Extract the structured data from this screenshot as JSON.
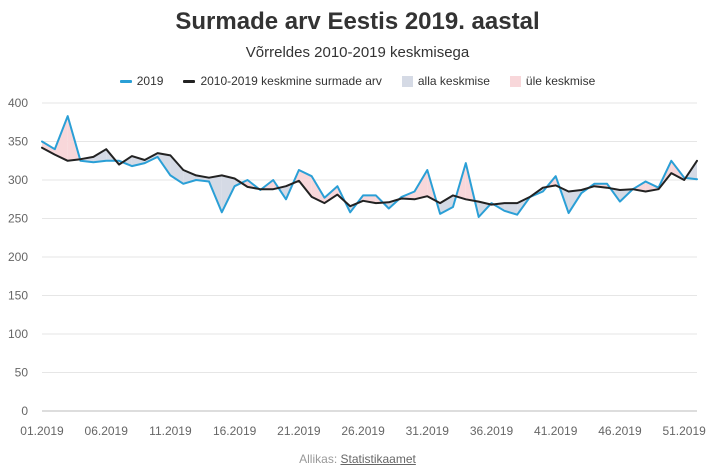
{
  "chart_data": {
    "type": "line",
    "title": "Surmade arv Eestis 2019. aastal",
    "subtitle": "Võrreldes 2010-2019 keskmisega",
    "xlabel": "",
    "ylabel": "",
    "x": [
      "01.2019",
      "02.2019",
      "03.2019",
      "04.2019",
      "05.2019",
      "06.2019",
      "07.2019",
      "08.2019",
      "09.2019",
      "10.2019",
      "11.2019",
      "12.2019",
      "13.2019",
      "14.2019",
      "15.2019",
      "16.2019",
      "17.2019",
      "18.2019",
      "19.2019",
      "20.2019",
      "21.2019",
      "22.2019",
      "23.2019",
      "24.2019",
      "25.2019",
      "26.2019",
      "27.2019",
      "28.2019",
      "29.2019",
      "30.2019",
      "31.2019",
      "32.2019",
      "33.2019",
      "34.2019",
      "35.2019",
      "36.2019",
      "37.2019",
      "38.2019",
      "39.2019",
      "40.2019",
      "41.2019",
      "42.2019",
      "43.2019",
      "44.2019",
      "45.2019",
      "46.2019",
      "47.2019",
      "48.2019",
      "49.2019",
      "50.2019",
      "51.2019",
      "52.2019"
    ],
    "x_tick_labels": [
      "01.2019",
      "06.2019",
      "11.2019",
      "16.2019",
      "21.2019",
      "26.2019",
      "31.2019",
      "36.2019",
      "41.2019",
      "46.2019",
      "51.2019"
    ],
    "x_tick_every": 5,
    "ylim": [
      0,
      400
    ],
    "y_ticks": [
      0,
      50,
      100,
      150,
      200,
      250,
      300,
      350,
      400
    ],
    "grid": true,
    "legend_position": "top-center",
    "series": [
      {
        "name": "2019",
        "color": "#2a9fd6",
        "values": [
          350,
          340,
          383,
          325,
          323,
          325,
          325,
          318,
          322,
          330,
          306,
          295,
          300,
          298,
          258,
          292,
          300,
          287,
          300,
          275,
          313,
          305,
          277,
          292,
          258,
          280,
          280,
          263,
          278,
          285,
          313,
          256,
          265,
          322,
          252,
          270,
          260,
          255,
          278,
          285,
          305,
          257,
          283,
          295,
          295,
          272,
          288,
          298,
          290,
          325,
          303,
          301
        ]
      },
      {
        "name": "2010-2019 keskmine surmade arv",
        "color": "#222222",
        "values": [
          342,
          333,
          325,
          327,
          330,
          340,
          320,
          331,
          326,
          335,
          332,
          313,
          306,
          303,
          306,
          302,
          291,
          288,
          288,
          292,
          299,
          278,
          270,
          281,
          266,
          273,
          270,
          271,
          276,
          275,
          279,
          270,
          280,
          275,
          272,
          268,
          270,
          270,
          278,
          290,
          293,
          285,
          287,
          292,
          290,
          287,
          288,
          285,
          288,
          309,
          300,
          325
        ]
      }
    ],
    "area_legend": [
      {
        "name": "alla keskmise",
        "color": "#d5dae5"
      },
      {
        "name": "üle keskmise",
        "color": "#f8d7da"
      }
    ]
  },
  "source": {
    "prefix": "Allikas: ",
    "link_text": "Statistikaamet"
  }
}
